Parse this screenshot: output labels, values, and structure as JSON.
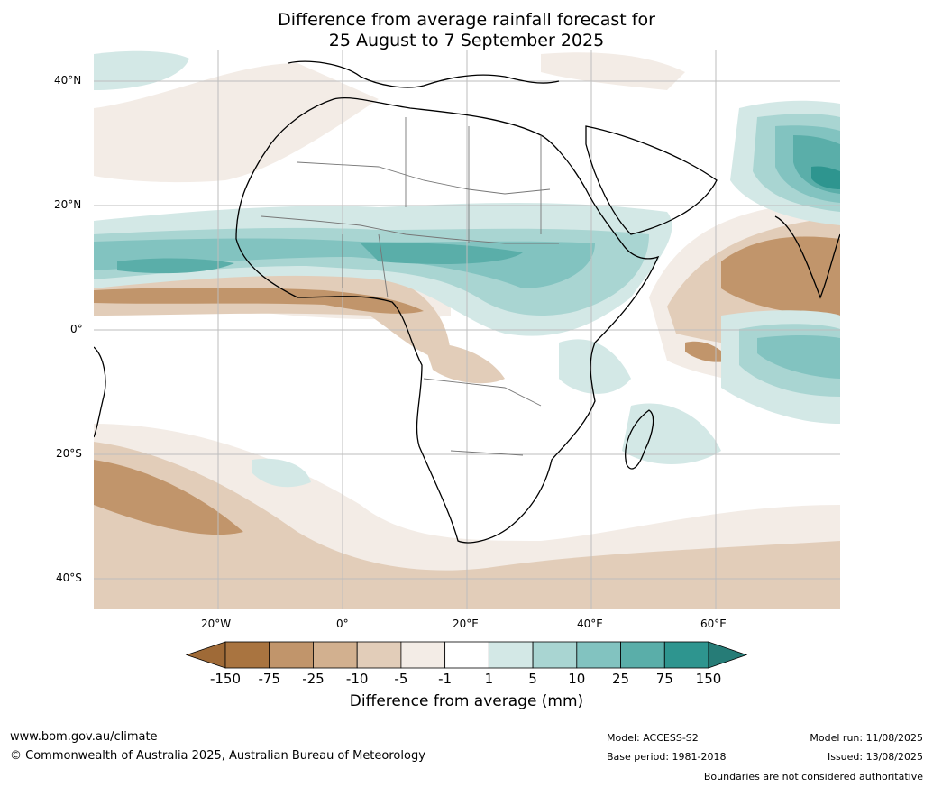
{
  "title": {
    "line1": "Difference from average rainfall forecast for",
    "line2": "25 August to 7 September 2025"
  },
  "axes": {
    "lat_labels": [
      "40°N",
      "20°N",
      "0°",
      "20°S",
      "40°S"
    ],
    "lon_labels": [
      "20°W",
      "0°",
      "20°E",
      "40°E",
      "60°E"
    ]
  },
  "colorbar": {
    "title": "Difference from average (mm)",
    "tick_labels": [
      "-150",
      "-75",
      "-25",
      "-10",
      "-5",
      "-1",
      "1",
      "5",
      "10",
      "25",
      "75",
      "150"
    ],
    "colors": [
      "#9f6a37",
      "#a97440",
      "#c1956b",
      "#d2b08f",
      "#e2cdb9",
      "#f3ece6",
      "#ffffff",
      "#d3e8e6",
      "#a9d5d2",
      "#82c3c0",
      "#5aaea9",
      "#2e958f",
      "#267c77"
    ]
  },
  "footer": {
    "website": "www.bom.gov.au/climate",
    "copyright": "© Commonwealth of Australia 2025, Australian Bureau of Meteorology",
    "model": "Model: ACCESS-S2",
    "base_period": "Base period: 1981-2018",
    "model_run": "Model run: 11/08/2025",
    "issued": "Issued: 13/08/2025",
    "disclaimer": "Boundaries are not considered authoritative"
  }
}
